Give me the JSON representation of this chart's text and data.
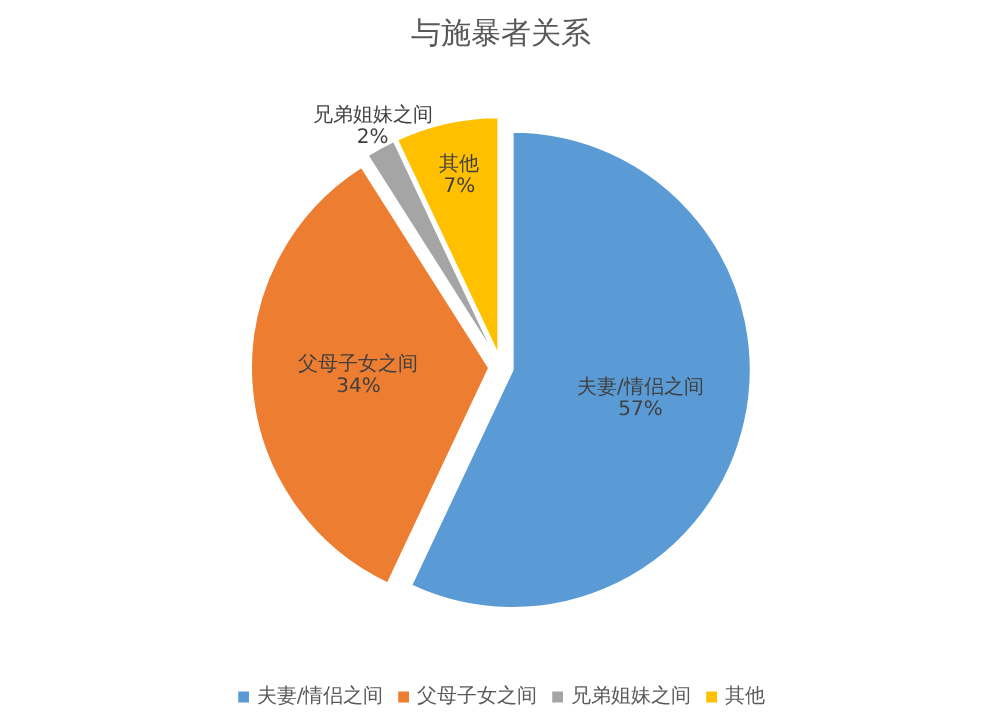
{
  "chart_data": {
    "type": "pie",
    "title": "与施暴者关系",
    "categories": [
      "夫妻/情侣之间",
      "父母子女之间",
      "兄弟姐妹之间",
      "其他"
    ],
    "values": [
      57,
      34,
      2,
      7
    ],
    "colors": [
      "#5b9bd5",
      "#ed7d31",
      "#a5a5a5",
      "#ffc000"
    ],
    "value_labels": [
      "57%",
      "34%",
      "2%",
      "7%"
    ],
    "legend": "bottom"
  }
}
